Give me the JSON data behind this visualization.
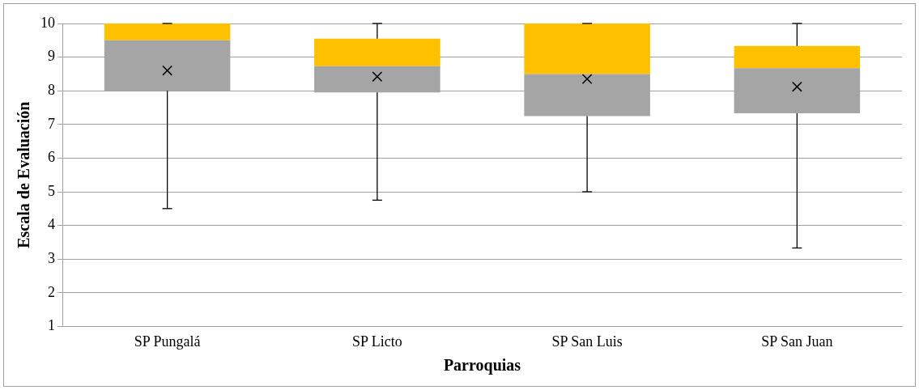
{
  "chart_data": {
    "type": "box",
    "xlabel": "Parroquias",
    "ylabel": "Escala de Evaluación",
    "categories": [
      "SP Pungalá",
      "SP Licto",
      "SP San Luis",
      "SP San Juan"
    ],
    "colors": [
      "#ffc000",
      "#ffc000",
      "#ffc000",
      "#ffc000"
    ],
    "series": [
      {
        "color": "#a5a5a5",
        "boxes": [
          {
            "low": 4.5,
            "q1": 8.0,
            "median": 9.5,
            "q3": 10,
            "high": 10,
            "mean": 8.6
          },
          {
            "low": 4.75,
            "q1": 7.95,
            "median": 8.73,
            "q3": 9.55,
            "high": 10,
            "mean": 8.42
          },
          {
            "low": 5,
            "q1": 7.25,
            "median": 8.5,
            "q3": 10,
            "high": 10,
            "mean": 8.35
          },
          {
            "low": 3.33,
            "q1": 7.33,
            "median": 8.67,
            "q3": 9.33,
            "high": 10,
            "mean": 8.12
          }
        ]
      }
    ],
    "ylim": [
      1,
      10
    ],
    "yticks": [
      1,
      2,
      3,
      4,
      5,
      6,
      7,
      8,
      9,
      10
    ],
    "grid": "y",
    "legend": false
  }
}
